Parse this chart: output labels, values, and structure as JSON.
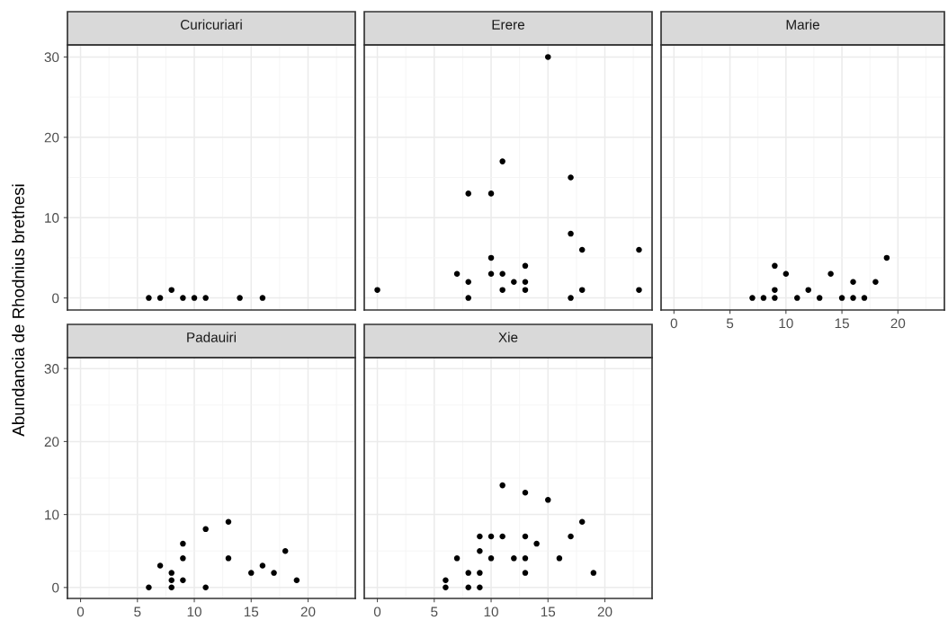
{
  "chart_data": [
    {
      "type": "scatter",
      "title": "Curicuriari",
      "ylabel": "Abundancia de Rhodnius brethesi",
      "x": [
        6,
        7,
        8,
        9,
        10,
        11,
        14,
        16
      ],
      "values": [
        0,
        0,
        1,
        0,
        0,
        0,
        0,
        0
      ],
      "color": "#000000",
      "marker": "circle",
      "xlim": [
        -1.15,
        24.15
      ],
      "xticks": [
        0,
        5,
        10,
        15,
        20
      ],
      "ylim": [
        -1.5,
        31.5
      ],
      "yticks": [
        0,
        10,
        20,
        30
      ],
      "grid": true,
      "tick_labels": "y"
    },
    {
      "type": "scatter",
      "title": "Erere",
      "x": [
        0,
        15,
        11,
        17,
        8,
        10,
        17,
        18,
        23,
        10,
        13,
        7,
        10,
        11,
        8,
        12,
        13,
        11,
        13,
        18,
        23,
        8,
        17
      ],
      "values": [
        1,
        30,
        17,
        15,
        13,
        13,
        8,
        6,
        6,
        5,
        4,
        3,
        3,
        3,
        2,
        2,
        2,
        1,
        1,
        1,
        1,
        0,
        0
      ],
      "color": "#000000",
      "marker": "circle",
      "xlim": [
        -1.15,
        24.15
      ],
      "xticks": [
        0,
        5,
        10,
        15,
        20
      ],
      "ylim": [
        -1.5,
        31.5
      ],
      "yticks": [
        0,
        10,
        20,
        30
      ],
      "grid": true,
      "tick_labels": false
    },
    {
      "type": "scatter",
      "title": "Marie",
      "x": [
        7,
        8,
        9,
        9,
        9,
        10,
        11,
        12,
        13,
        14,
        15,
        16,
        16,
        17,
        18,
        19
      ],
      "values": [
        0,
        0,
        0,
        1,
        4,
        3,
        0,
        1,
        0,
        3,
        0,
        2,
        0,
        0,
        2,
        5
      ],
      "color": "#000000",
      "marker": "circle",
      "xlim": [
        -1.15,
        24.15
      ],
      "xticks": [
        0,
        5,
        10,
        15,
        20
      ],
      "ylim": [
        -1.5,
        31.5
      ],
      "yticks": [
        0,
        10,
        20,
        30
      ],
      "grid": true,
      "tick_labels": "x"
    },
    {
      "type": "scatter",
      "title": "Padauiri",
      "x": [
        6,
        7,
        8,
        8,
        8,
        9,
        9,
        9,
        11,
        11,
        13,
        13,
        15,
        16,
        17,
        18,
        19
      ],
      "values": [
        0,
        3,
        2,
        1,
        0,
        6,
        4,
        1,
        8,
        0,
        9,
        4,
        2,
        3,
        2,
        5,
        1
      ],
      "color": "#000000",
      "marker": "circle",
      "xlim": [
        -1.15,
        24.15
      ],
      "xticks": [
        0,
        5,
        10,
        15,
        20
      ],
      "ylim": [
        -1.5,
        31.5
      ],
      "yticks": [
        0,
        10,
        20,
        30
      ],
      "grid": true
    },
    {
      "type": "scatter",
      "title": "Xie",
      "x": [
        6,
        6,
        7,
        8,
        8,
        9,
        9,
        9,
        9,
        10,
        10,
        11,
        11,
        12,
        13,
        13,
        13,
        13,
        14,
        15,
        16,
        17,
        18,
        19
      ],
      "values": [
        0,
        1,
        4,
        2,
        0,
        0,
        2,
        5,
        7,
        7,
        4,
        7,
        14,
        4,
        13,
        7,
        4,
        2,
        6,
        12,
        4,
        7,
        9,
        2
      ],
      "color": "#000000",
      "marker": "circle",
      "xlim": [
        -1.15,
        24.15
      ],
      "xticks": [
        0,
        5,
        10,
        15,
        20
      ],
      "ylim": [
        -1.5,
        31.5
      ],
      "yticks": [
        0,
        10,
        20,
        30
      ],
      "grid": true,
      "tick_labels": "x"
    }
  ]
}
